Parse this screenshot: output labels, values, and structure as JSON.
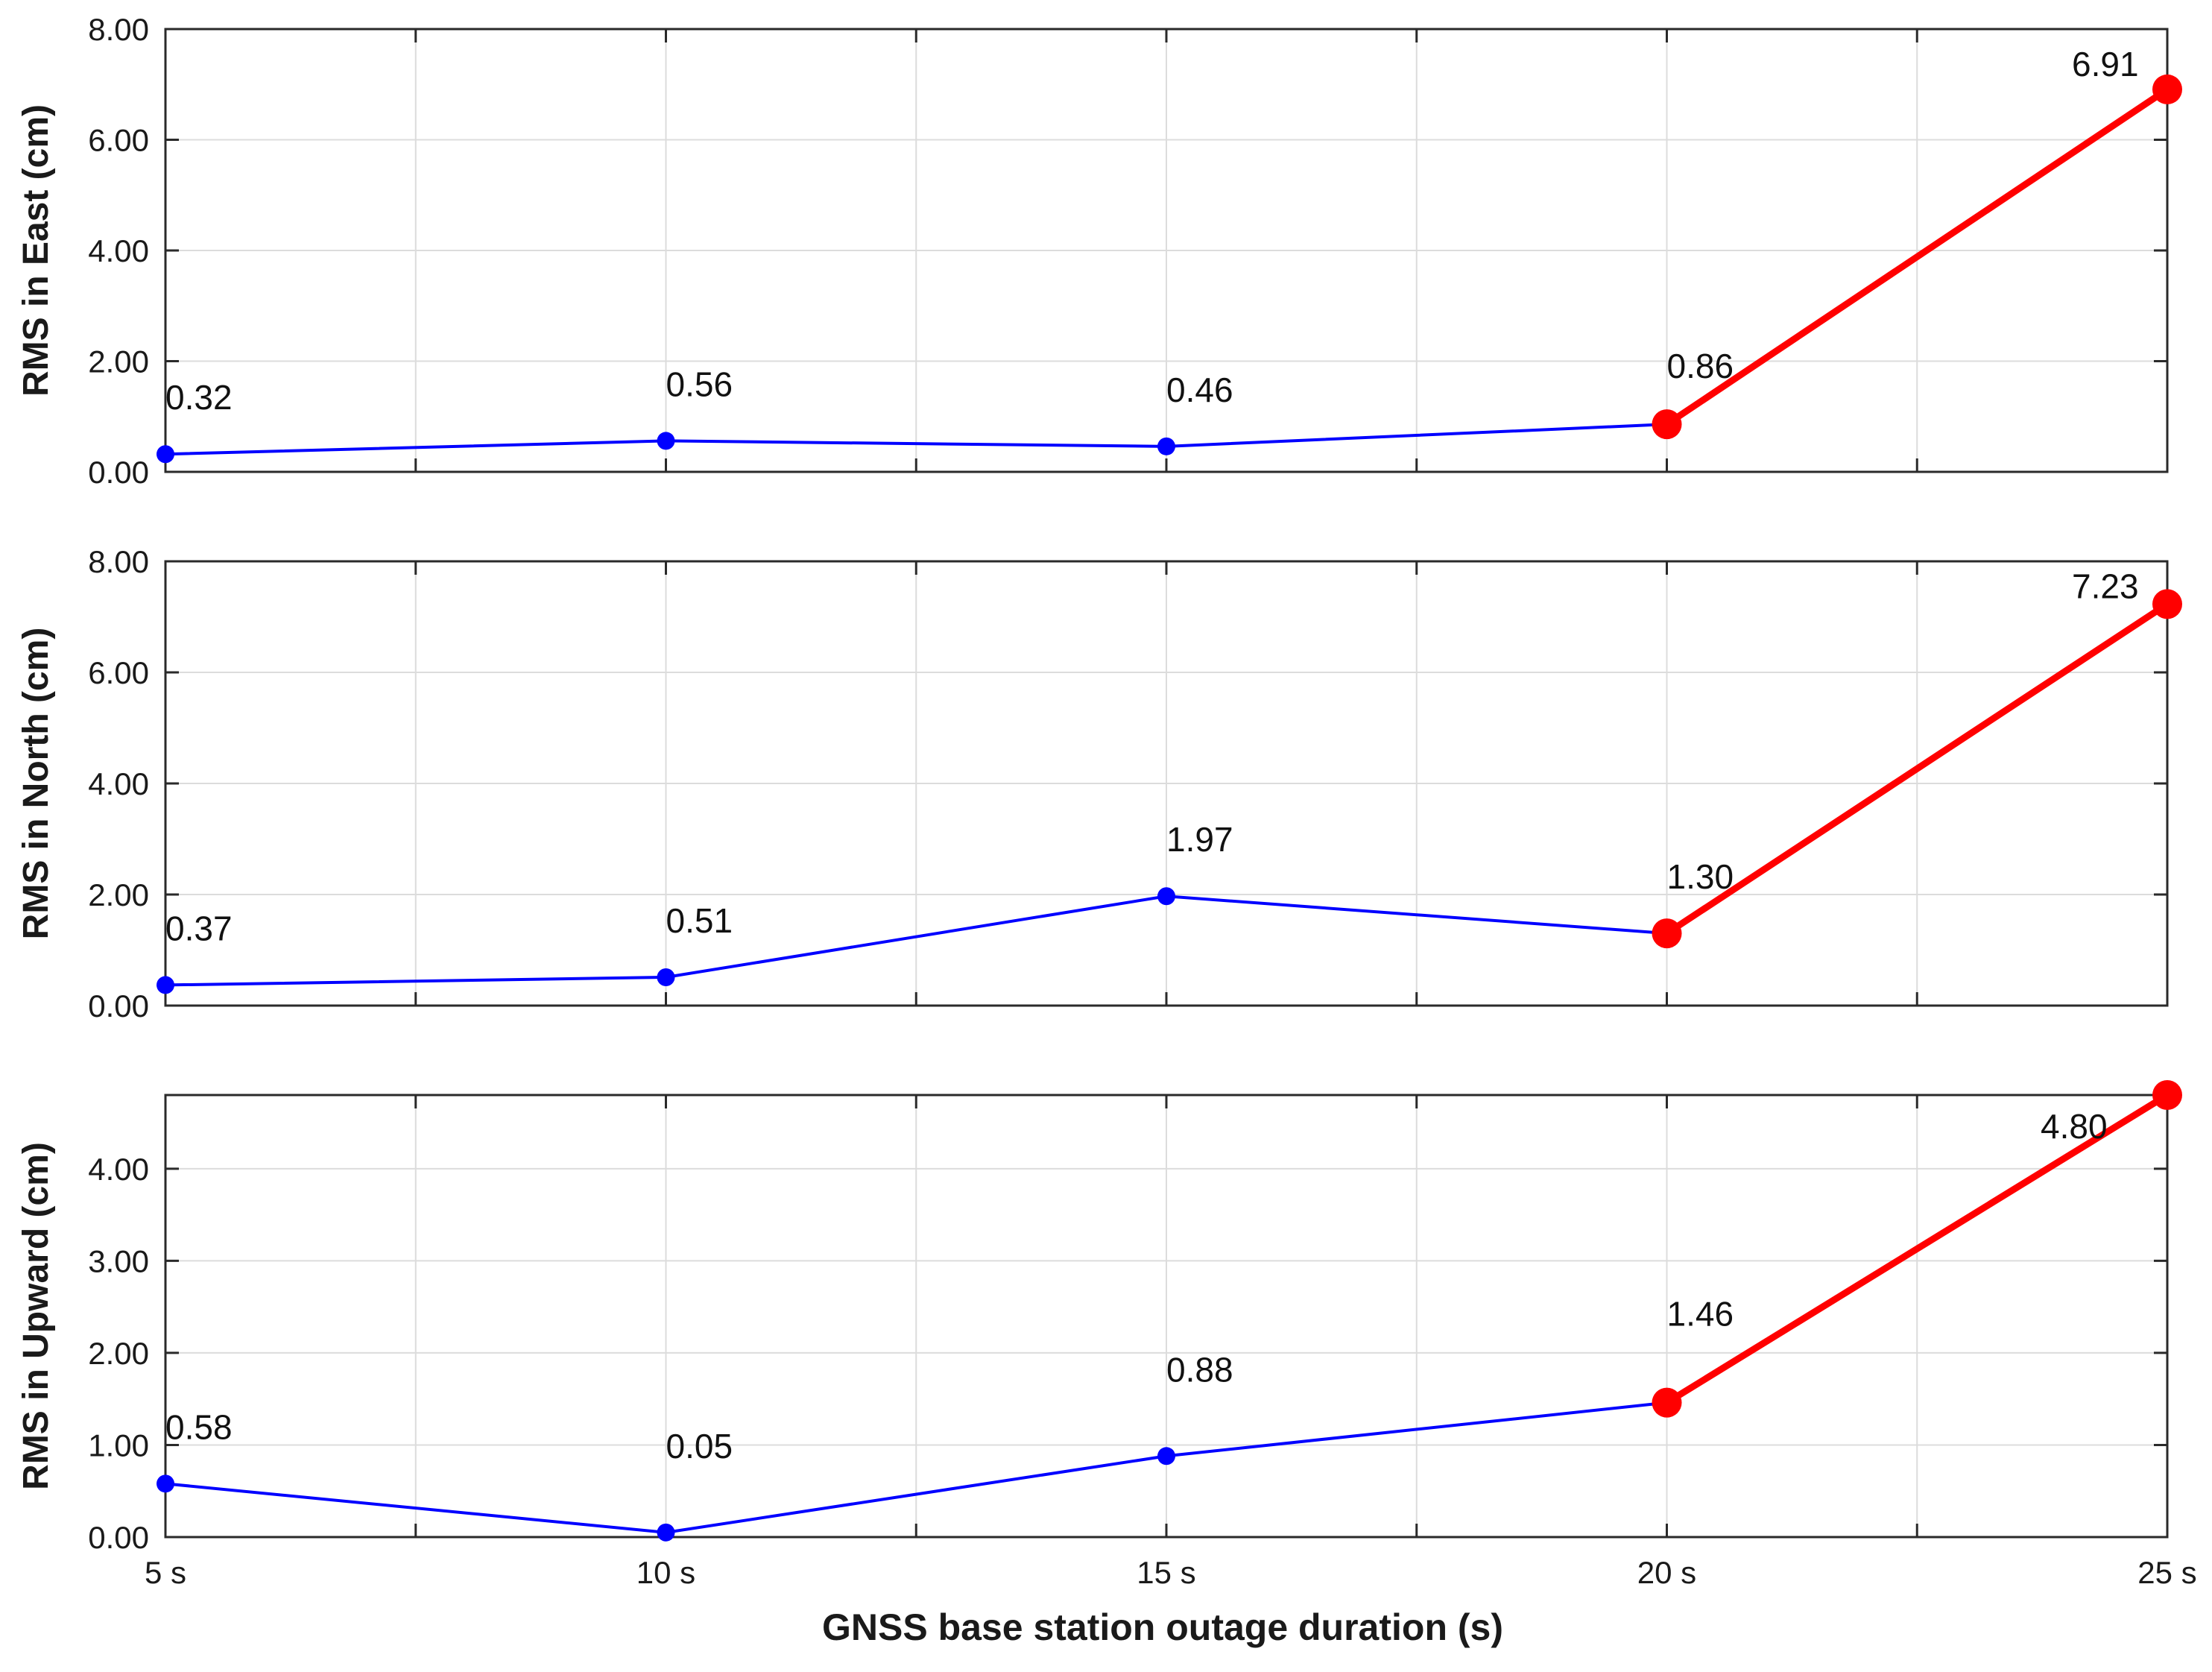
{
  "chart_data": {
    "type": "line",
    "xlabel": "GNSS base station outage duration (s)",
    "x_tick_labels": [
      "5 s",
      "10 s",
      "15 s",
      "20 s",
      "25 s"
    ],
    "grid": true,
    "colors": {
      "normal": "#0000ff",
      "highlight": "#ff0000"
    },
    "subplots": [
      {
        "ylabel": "RMS in East (cm)",
        "ylim": [
          0,
          8
        ],
        "y_ticks": [
          "0.00",
          "2.00",
          "4.00",
          "6.00",
          "8.00"
        ],
        "values": [
          0.32,
          0.56,
          0.46,
          0.86,
          6.91
        ],
        "labels": [
          "0.32",
          "0.56",
          "0.46",
          "0.86",
          "6.91"
        ]
      },
      {
        "ylabel": "RMS in North (cm)",
        "ylim": [
          0,
          8
        ],
        "y_ticks": [
          "0.00",
          "2.00",
          "4.00",
          "6.00",
          "8.00"
        ],
        "values": [
          0.37,
          0.51,
          1.97,
          1.3,
          7.23
        ],
        "labels": [
          "0.37",
          "0.51",
          "1.97",
          "1.30",
          "7.23"
        ]
      },
      {
        "ylabel": "RMS in Upward (cm)",
        "ylim": [
          0,
          4.8
        ],
        "y_ticks": [
          "0.00",
          "1.00",
          "2.00",
          "3.00",
          "4.00"
        ],
        "values": [
          0.58,
          0.05,
          0.88,
          1.46,
          4.8
        ],
        "labels": [
          "0.58",
          "0.05",
          "0.88",
          "1.46",
          "4.80"
        ]
      }
    ]
  }
}
